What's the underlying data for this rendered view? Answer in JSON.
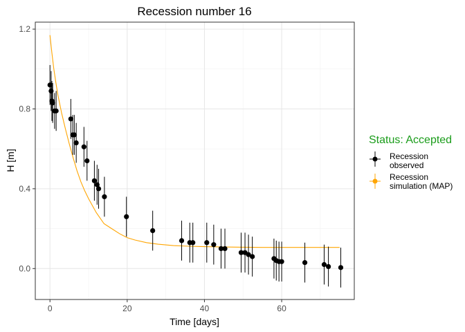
{
  "chart_data": {
    "type": "scatter",
    "title": "Recession number 16",
    "xlabel": "Time [days]",
    "ylabel": "H [m]",
    "xlim": [
      -3.8,
      78.8
    ],
    "ylim": [
      -0.155,
      1.235
    ],
    "x_ticks": [
      0,
      20,
      40,
      60
    ],
    "x_tick_labels": [
      "0",
      "20",
      "40",
      "60"
    ],
    "y_ticks": [
      0.0,
      0.4,
      0.8,
      1.2
    ],
    "y_tick_labels": [
      "0.0",
      "0.4",
      "0.8",
      "1.2"
    ],
    "grid": true,
    "legend": {
      "position": "right",
      "title": "Status: Accepted",
      "title_color": "#1a9c1a",
      "entries": [
        {
          "line1": "Recession",
          "line2": "observed",
          "color": "#000000"
        },
        {
          "line1": "Recession",
          "line2": "simulation (MAP)",
          "color": "#ffa500"
        }
      ]
    },
    "series": [
      {
        "kind": "points-with-errorbars",
        "color": "#000000",
        "points": [
          {
            "x": 0.0,
            "y": 0.92,
            "lo": 0.82,
            "hi": 1.02
          },
          {
            "x": 0.3,
            "y": 0.89,
            "lo": 0.79,
            "hi": 0.99
          },
          {
            "x": 0.5,
            "y": 0.84,
            "lo": 0.74,
            "hi": 0.94
          },
          {
            "x": 0.7,
            "y": 0.83,
            "lo": 0.73,
            "hi": 0.93
          },
          {
            "x": 1.2,
            "y": 0.79,
            "lo": 0.7,
            "hi": 0.88
          },
          {
            "x": 1.6,
            "y": 0.79,
            "lo": 0.69,
            "hi": 0.89
          },
          {
            "x": 5.4,
            "y": 0.75,
            "lo": 0.65,
            "hi": 0.85
          },
          {
            "x": 5.9,
            "y": 0.67,
            "lo": 0.57,
            "hi": 0.77
          },
          {
            "x": 6.3,
            "y": 0.67,
            "lo": 0.57,
            "hi": 0.77
          },
          {
            "x": 6.8,
            "y": 0.63,
            "lo": 0.53,
            "hi": 0.73
          },
          {
            "x": 8.8,
            "y": 0.61,
            "lo": 0.51,
            "hi": 0.71
          },
          {
            "x": 9.6,
            "y": 0.54,
            "lo": 0.44,
            "hi": 0.64
          },
          {
            "x": 11.5,
            "y": 0.44,
            "lo": 0.34,
            "hi": 0.54
          },
          {
            "x": 12.2,
            "y": 0.42,
            "lo": 0.32,
            "hi": 0.52
          },
          {
            "x": 12.6,
            "y": 0.4,
            "lo": 0.3,
            "hi": 0.5
          },
          {
            "x": 14.1,
            "y": 0.36,
            "lo": 0.26,
            "hi": 0.46
          },
          {
            "x": 19.8,
            "y": 0.26,
            "lo": 0.16,
            "hi": 0.36
          },
          {
            "x": 26.6,
            "y": 0.19,
            "lo": 0.09,
            "hi": 0.29
          },
          {
            "x": 34.1,
            "y": 0.14,
            "lo": 0.04,
            "hi": 0.24
          },
          {
            "x": 36.2,
            "y": 0.13,
            "lo": 0.03,
            "hi": 0.23
          },
          {
            "x": 37.0,
            "y": 0.13,
            "lo": 0.03,
            "hi": 0.23
          },
          {
            "x": 40.6,
            "y": 0.13,
            "lo": 0.03,
            "hi": 0.23
          },
          {
            "x": 42.4,
            "y": 0.12,
            "lo": 0.02,
            "hi": 0.22
          },
          {
            "x": 44.3,
            "y": 0.1,
            "lo": 0.0,
            "hi": 0.2
          },
          {
            "x": 45.3,
            "y": 0.1,
            "lo": 0.0,
            "hi": 0.2
          },
          {
            "x": 49.5,
            "y": 0.08,
            "lo": -0.02,
            "hi": 0.18
          },
          {
            "x": 50.5,
            "y": 0.08,
            "lo": -0.02,
            "hi": 0.18
          },
          {
            "x": 51.4,
            "y": 0.07,
            "lo": -0.03,
            "hi": 0.17
          },
          {
            "x": 52.4,
            "y": 0.06,
            "lo": -0.04,
            "hi": 0.16
          },
          {
            "x": 58.0,
            "y": 0.05,
            "lo": -0.05,
            "hi": 0.15
          },
          {
            "x": 58.6,
            "y": 0.04,
            "lo": -0.06,
            "hi": 0.14
          },
          {
            "x": 59.3,
            "y": 0.035,
            "lo": -0.065,
            "hi": 0.135
          },
          {
            "x": 60.0,
            "y": 0.035,
            "lo": -0.065,
            "hi": 0.135
          },
          {
            "x": 66.0,
            "y": 0.03,
            "lo": -0.07,
            "hi": 0.13
          },
          {
            "x": 71.0,
            "y": 0.02,
            "lo": -0.08,
            "hi": 0.12
          },
          {
            "x": 72.1,
            "y": 0.01,
            "lo": -0.09,
            "hi": 0.11
          },
          {
            "x": 75.3,
            "y": 0.005,
            "lo": -0.095,
            "hi": 0.105
          }
        ]
      },
      {
        "kind": "line",
        "color": "#ffa500",
        "x": [
          0,
          0.5,
          1,
          1.5,
          2,
          3,
          4,
          5,
          6,
          7,
          8,
          9,
          10,
          12,
          14,
          16,
          18,
          20,
          22,
          25,
          28,
          32,
          36,
          40,
          45,
          50,
          55,
          60,
          65,
          70,
          75
        ],
        "y": [
          1.17,
          1.08,
          1.0,
          0.935,
          0.875,
          0.78,
          0.7,
          0.625,
          0.555,
          0.49,
          0.435,
          0.39,
          0.35,
          0.28,
          0.225,
          0.2,
          0.175,
          0.155,
          0.143,
          0.13,
          0.122,
          0.115,
          0.112,
          0.11,
          0.108,
          0.107,
          0.106,
          0.106,
          0.106,
          0.106,
          0.106
        ]
      }
    ]
  }
}
